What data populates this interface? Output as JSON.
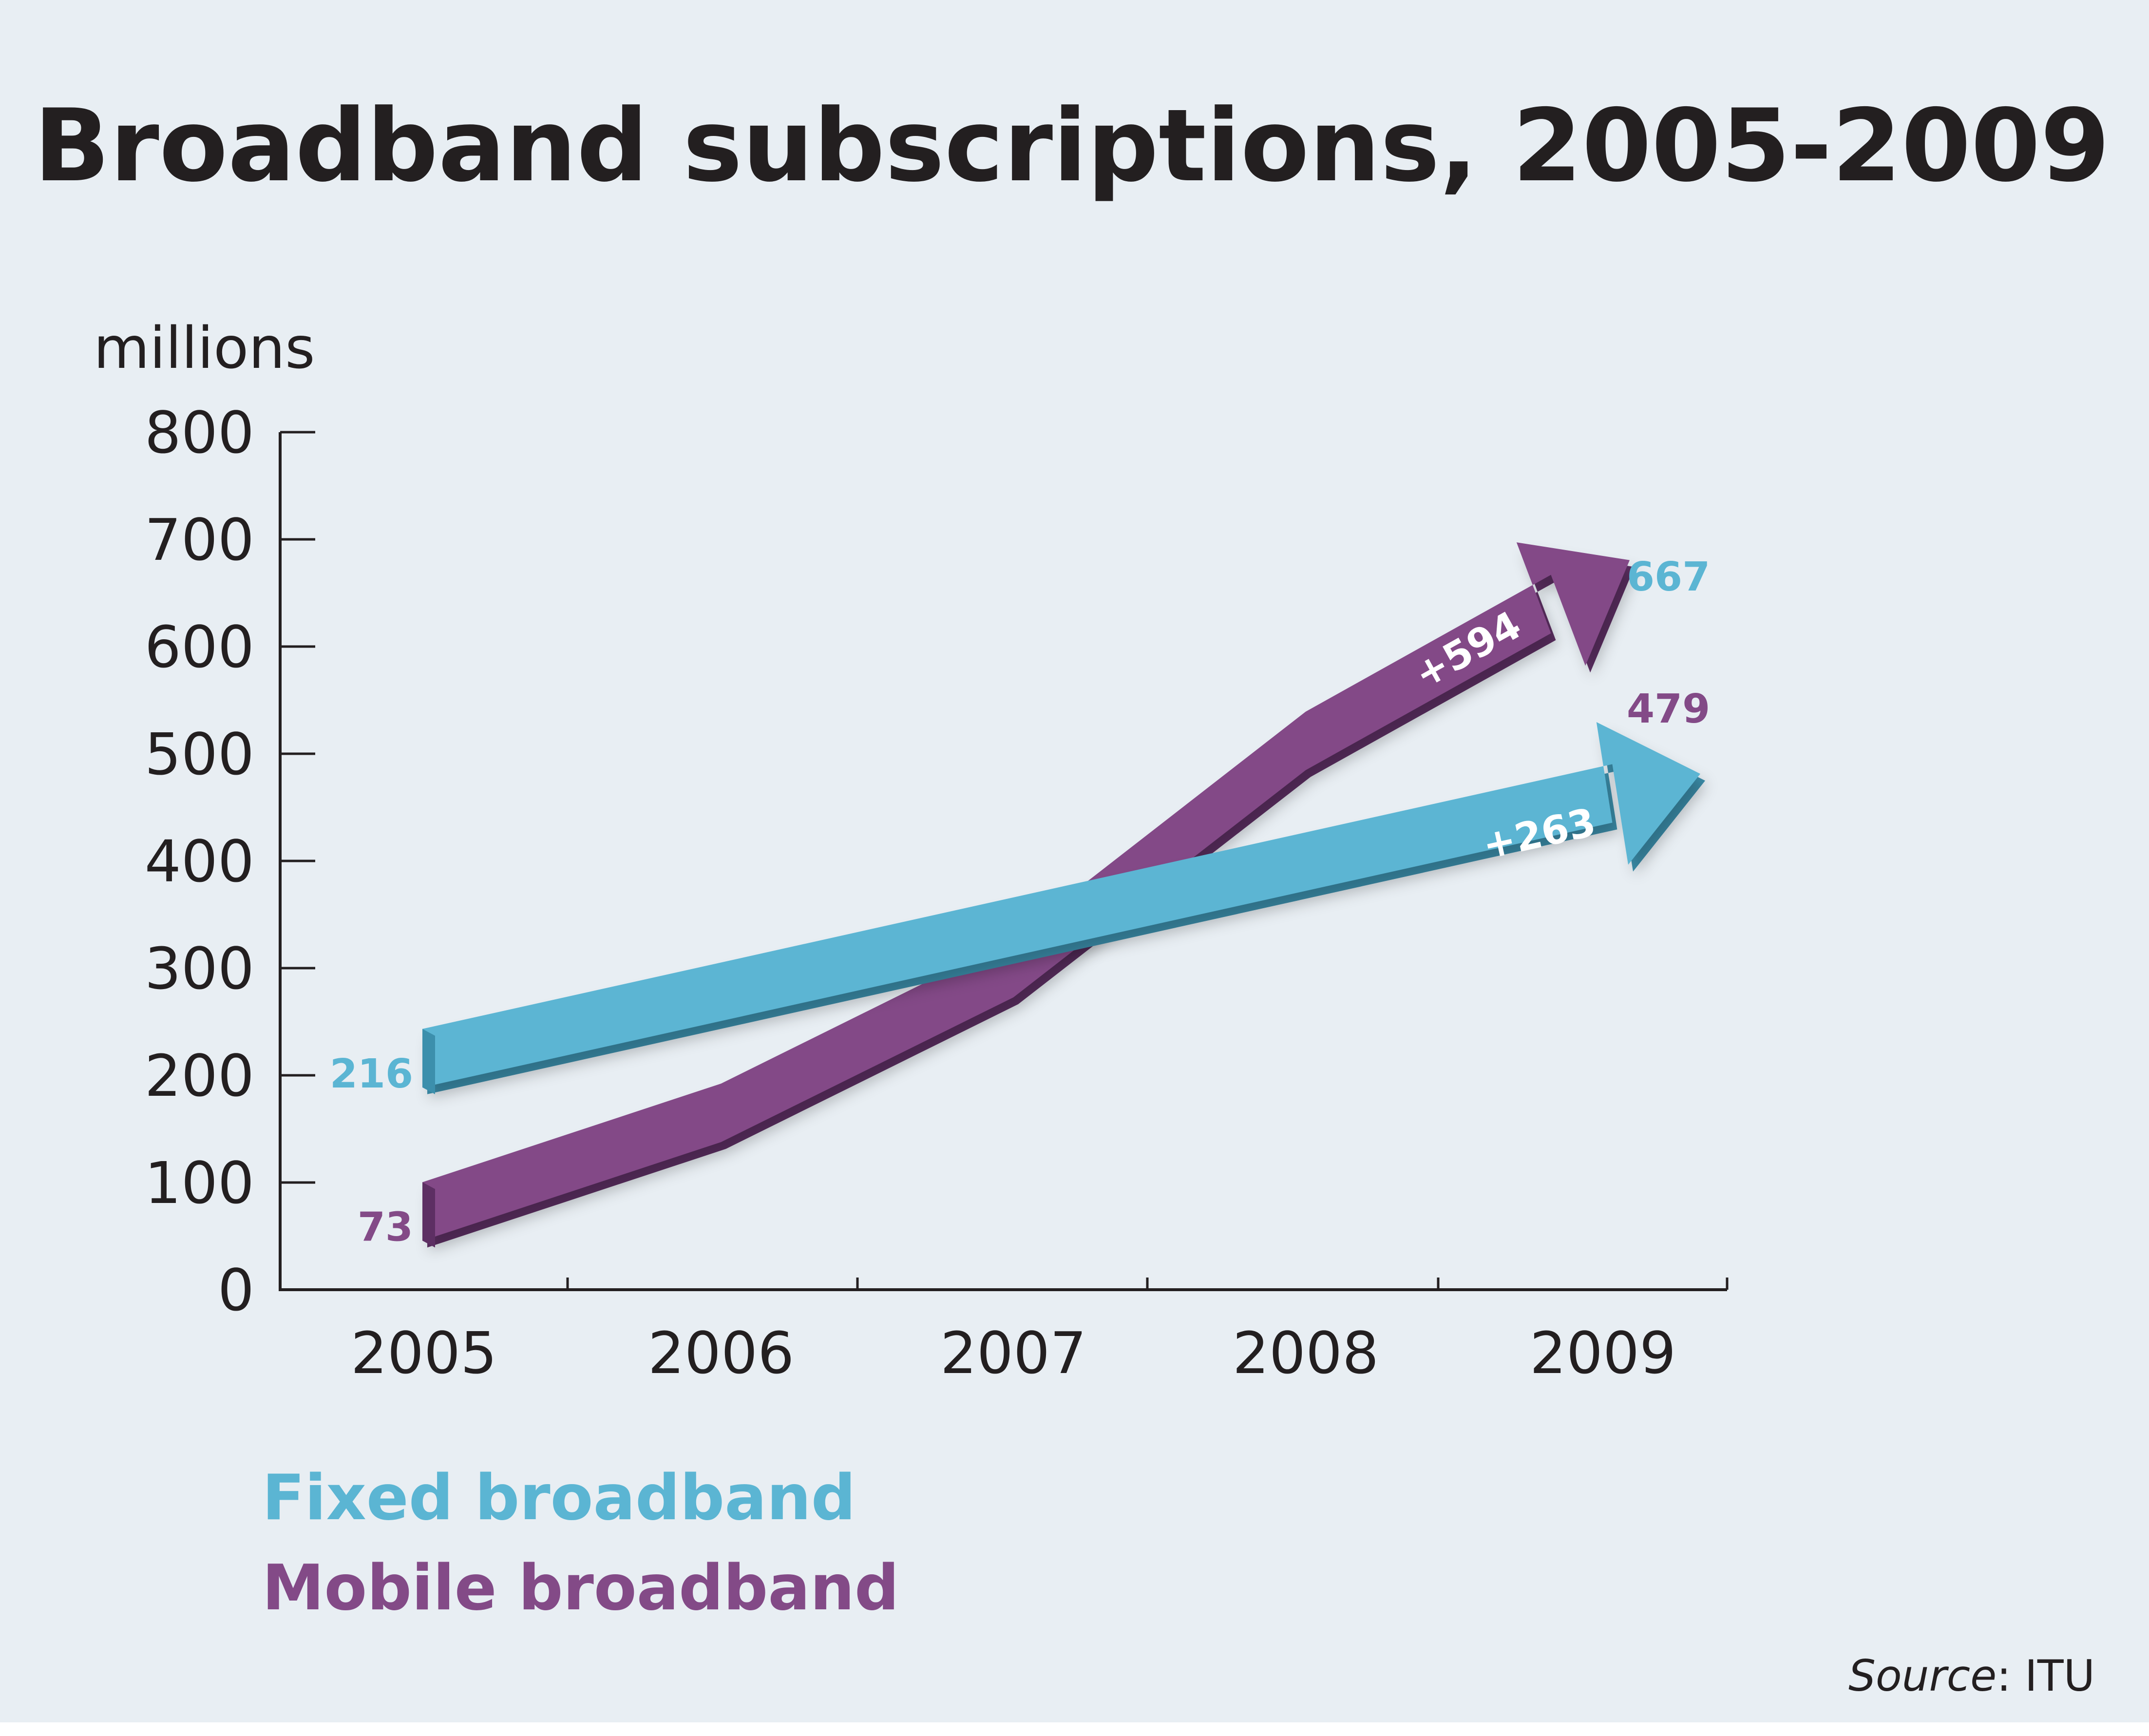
{
  "chart_data": {
    "type": "line",
    "title": "Broadband subscriptions, 2005-2009",
    "ylabel": "millions",
    "xlabel": "",
    "x": [
      "2005",
      "2006",
      "2007",
      "2008",
      "2009"
    ],
    "ylim": [
      0,
      800
    ],
    "y_ticks": [
      0,
      100,
      200,
      300,
      400,
      500,
      600,
      700,
      800
    ],
    "grid": false,
    "legend_position": "bottom-left",
    "series": [
      {
        "name": "Fixed broadband",
        "color": "#5bb5d3",
        "values": [
          216,
          null,
          null,
          null,
          479
        ],
        "start_label": "216",
        "end_label": "479",
        "change_label": "+263"
      },
      {
        "name": "Mobile broadband",
        "color": "#834a87",
        "values": [
          73,
          165,
          300,
          512,
          667
        ],
        "start_label": "73",
        "end_label": "667",
        "change_label": "+594"
      }
    ]
  },
  "source": {
    "label": "Source",
    "value": ": ITU"
  }
}
